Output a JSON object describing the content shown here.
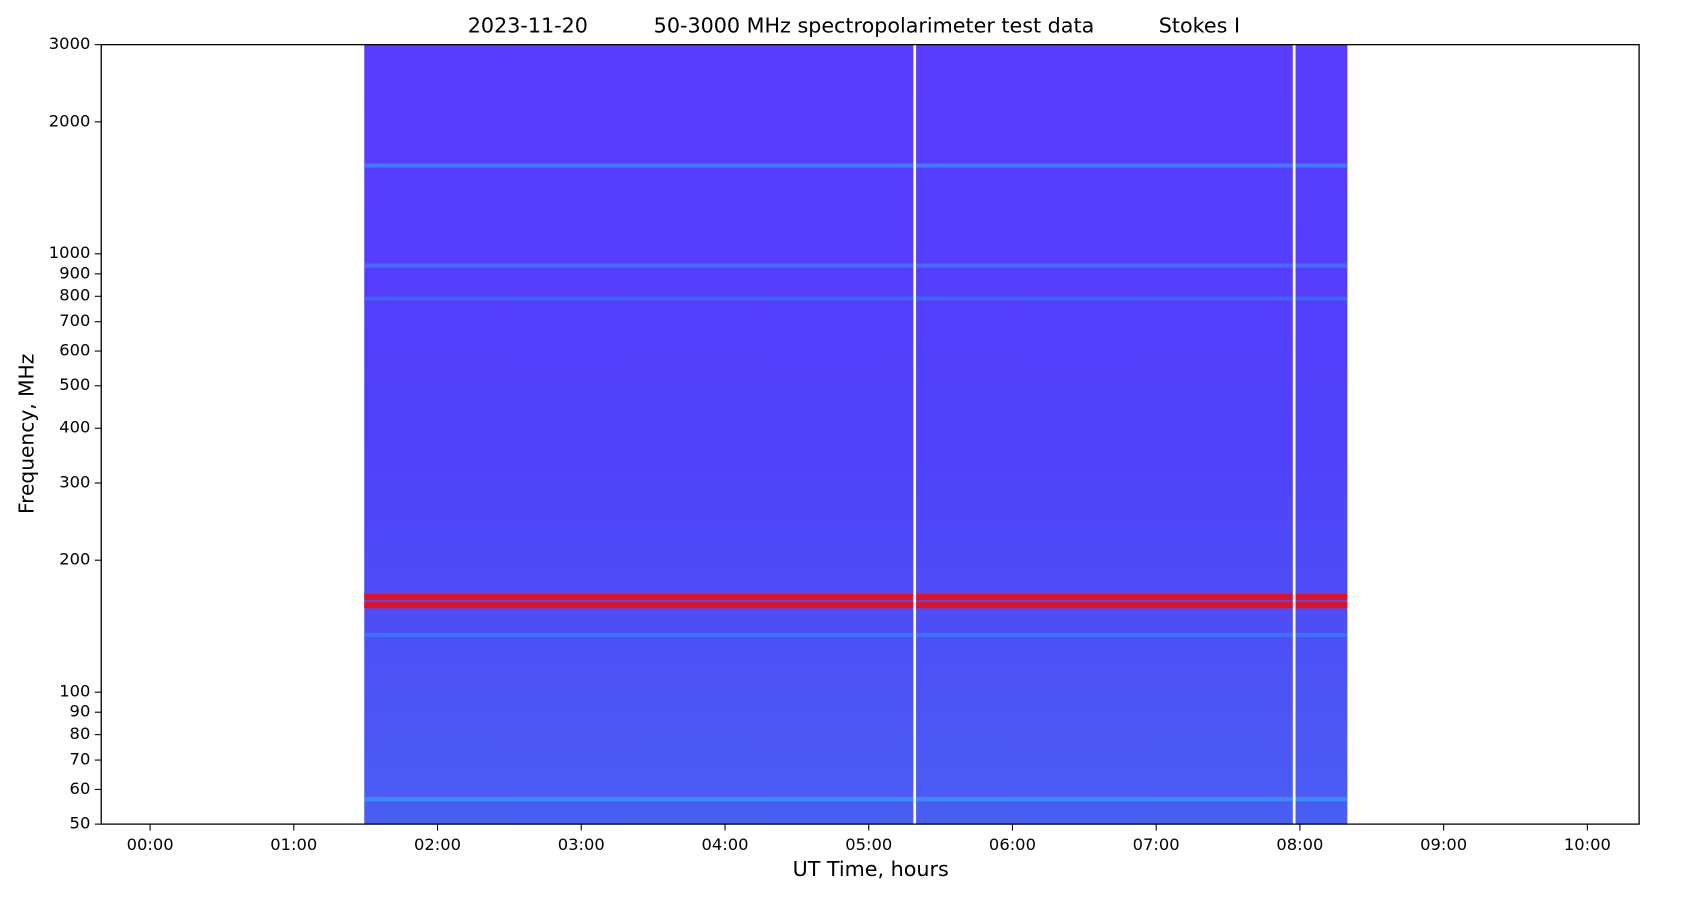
{
  "chart_data": {
    "type": "spectrogram",
    "title_parts": [
      "2023-11-20",
      "50-3000 MHz spectropolarimeter test data",
      "Stokes I"
    ],
    "xlabel": "UT Time, hours",
    "ylabel": "Frequency, MHz",
    "xlim": [
      -0.34,
      10.36
    ],
    "xticks": [
      {
        "value": 0,
        "label": "00:00"
      },
      {
        "value": 1,
        "label": "01:00"
      },
      {
        "value": 2,
        "label": "02:00"
      },
      {
        "value": 3,
        "label": "03:00"
      },
      {
        "value": 4,
        "label": "04:00"
      },
      {
        "value": 5,
        "label": "05:00"
      },
      {
        "value": 6,
        "label": "06:00"
      },
      {
        "value": 7,
        "label": "07:00"
      },
      {
        "value": 8,
        "label": "08:00"
      },
      {
        "value": 9,
        "label": "09:00"
      },
      {
        "value": 10,
        "label": "10:00"
      }
    ],
    "ylim": [
      50,
      3000
    ],
    "yscale": "log",
    "yticks": [
      50,
      60,
      70,
      80,
      90,
      100,
      200,
      300,
      400,
      500,
      600,
      700,
      800,
      900,
      1000,
      2000,
      3000
    ],
    "x": [
      1.49,
      8.33
    ],
    "gaps": [
      5.32,
      7.96
    ],
    "colors": [
      "#5a3cff",
      "#5040fa",
      "#4a5ef2"
    ],
    "bands": [
      {
        "freq": 165,
        "color": "#e8101a"
      },
      {
        "freq": 158,
        "color": "#e8101a"
      },
      {
        "freq": 1590,
        "color": "#3aa7ff"
      },
      {
        "freq": 940,
        "color": "#3c8cff"
      },
      {
        "freq": 790,
        "color": "#3c7cff"
      },
      {
        "freq": 135,
        "color": "#2f8dff"
      },
      {
        "freq": 57,
        "color": "#2fb0ff"
      }
    ]
  }
}
